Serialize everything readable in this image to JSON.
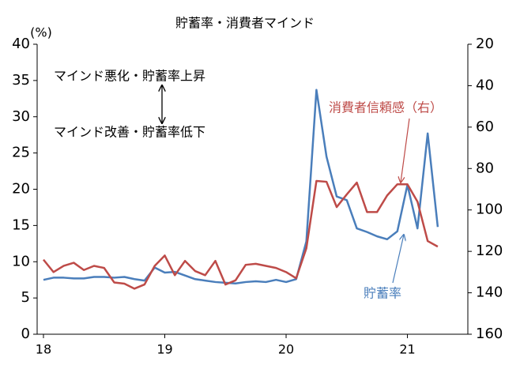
{
  "chart_data": {
    "type": "line",
    "title": "貯蓄率・消費者マインド",
    "y_unit": "(%)",
    "x": [
      18,
      18.083,
      18.167,
      18.25,
      18.333,
      18.417,
      18.5,
      18.583,
      18.667,
      18.75,
      18.833,
      18.917,
      19,
      19.083,
      19.167,
      19.25,
      19.333,
      19.417,
      19.5,
      19.583,
      19.667,
      19.75,
      19.833,
      19.917,
      20,
      20.083,
      20.167,
      20.25,
      20.333,
      20.417,
      20.5,
      20.583,
      20.667,
      20.75,
      20.833,
      20.917,
      21,
      21.083,
      21.167,
      21.25
    ],
    "xlim": [
      17.948,
      21.498
    ],
    "xticks": [
      18,
      19,
      20,
      21
    ],
    "ylim": [
      0,
      40
    ],
    "yticks": [
      0,
      5,
      10,
      15,
      20,
      25,
      30,
      35,
      40
    ],
    "y2lim": [
      160,
      20
    ],
    "y2ticks": [
      20,
      40,
      60,
      80,
      100,
      120,
      140,
      160
    ],
    "series": [
      {
        "name": "貯蓄率",
        "color": "#4a7ebb",
        "values": [
          7.5,
          7.8,
          7.8,
          7.7,
          7.7,
          7.9,
          7.9,
          7.8,
          7.9,
          7.6,
          7.4,
          9.2,
          8.5,
          8.6,
          8.1,
          7.6,
          7.4,
          7.2,
          7.1,
          7.0,
          7.2,
          7.3,
          7.2,
          7.5,
          7.2,
          7.6,
          12.8,
          33.7,
          24.5,
          19.0,
          18.5,
          14.6,
          14.1,
          13.5,
          13.1,
          14.2,
          20.6,
          14.6,
          27.7,
          14.8
        ]
      },
      {
        "name": "消費者信頼感（右）",
        "color": "#be4b48",
        "axis": "y2",
        "values": [
          124,
          130,
          127,
          125.5,
          129,
          127,
          128,
          135,
          135.6,
          138,
          136,
          127,
          122,
          131.5,
          124.6,
          129.5,
          131.5,
          124.6,
          136,
          134,
          126.5,
          126,
          127,
          128,
          130,
          133,
          118.5,
          86,
          86.4,
          98.6,
          92.5,
          86.8,
          101,
          101,
          93,
          87.6,
          87.6,
          96,
          115,
          117.7
        ]
      }
    ],
    "annotations": [
      "マインド悪化・貯蓄率上昇",
      "マインド改善・貯蓄率低下"
    ]
  }
}
